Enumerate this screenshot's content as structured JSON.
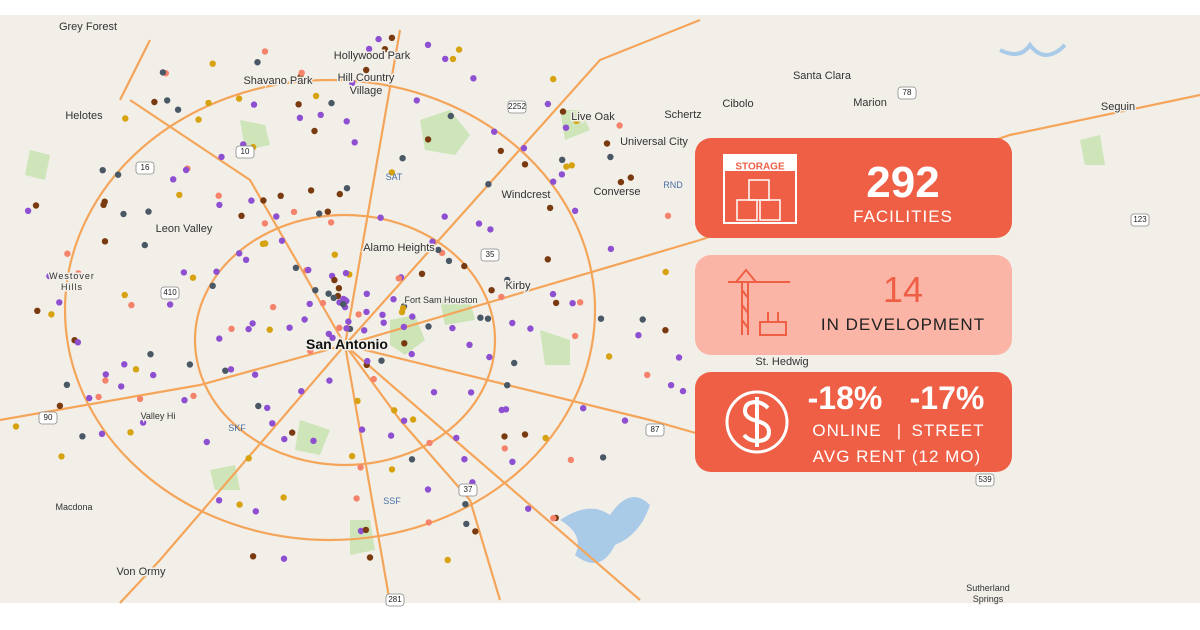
{
  "map": {
    "places": [
      "Grey Forest",
      "Helotes",
      "Shavano Park",
      "Hollywood Park",
      "Hill Country",
      "Village",
      "Live Oak",
      "Schertz",
      "Cibolo",
      "Santa Clara",
      "Marion",
      "Seguin",
      "Universal City",
      "Windcrest",
      "Converse",
      "Leon Valley",
      "Alamo Heights",
      "Fort Sam Houston",
      "Kirby",
      "San Antonio",
      "Valley Hi",
      "St. Hedwig",
      "Macdona",
      "Von Ormy",
      "Sutherland",
      "Springs",
      "Westover",
      "Hills"
    ],
    "airports": [
      "SAT",
      "RND",
      "SKF",
      "SSF"
    ],
    "shields": [
      "10",
      "35",
      "410",
      "37",
      "281",
      "90",
      "87",
      "123",
      "539",
      "78",
      "2252",
      "16"
    ]
  },
  "cards": {
    "facilities": {
      "icon_label": "STORAGE",
      "value": "292",
      "label": "FACILITIES"
    },
    "development": {
      "value": "14",
      "label": "IN DEVELOPMENT"
    },
    "rent": {
      "online": "-18%",
      "street": "-17%",
      "online_label": "ONLINE",
      "divider": "|",
      "street_label": "STREET",
      "label": "AVG RENT (12 MO)"
    }
  }
}
